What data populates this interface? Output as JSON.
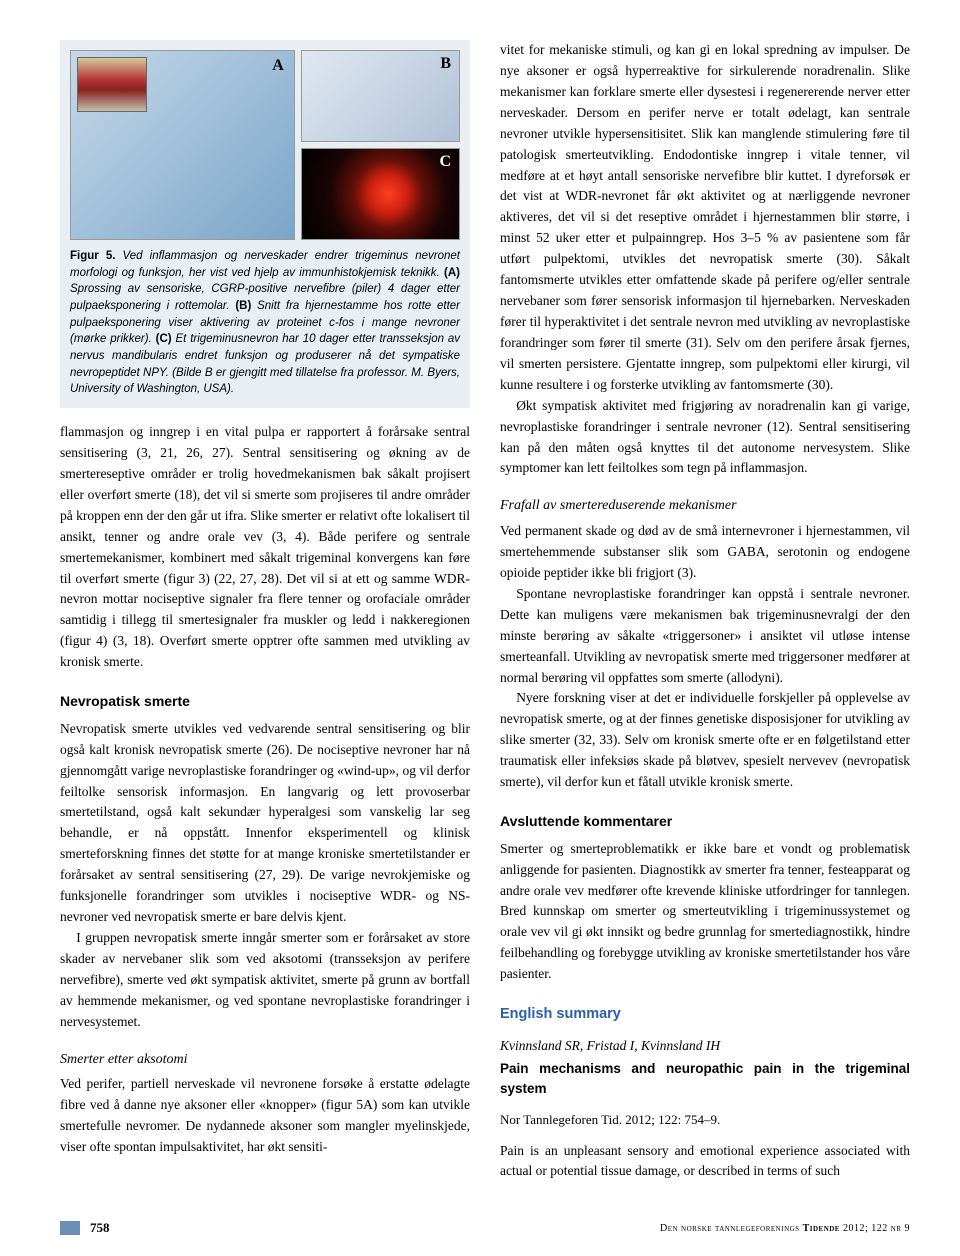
{
  "figure": {
    "label": "Figur 5.",
    "panel_a": "A",
    "panel_b": "B",
    "panel_c": "C",
    "caption_main": "Ved inflammasjon og nerveskader endrer trigeminus nevronet morfologi og funksjon, her vist ved hjelp av immunhistokjemisk teknikk.",
    "caption_a_label": "(A)",
    "caption_a": "Sprossing av sensoriske, CGRP-positive nervefibre (piler) 4 dager etter pulpaeksponering i rottemolar.",
    "caption_b_label": "(B)",
    "caption_b": "Snitt fra hjernestamme hos rotte etter pulpaeksponering viser aktivering av proteinet c-fos i mange nevroner (mørke prikker).",
    "caption_c_label": "(C)",
    "caption_c": "Et trigeminusnevron har 10 dager etter transseksjon av nervus mandibularis endret funksjon og produserer nå det sympatiske nevropeptidet NPY. (Bilde B er gjengitt med tillatelse fra professor. M. Byers, University of Washington, USA)."
  },
  "left_column": {
    "p1": "flammasjon og inngrep i en vital pulpa er rapportert å forårsake sentral sensitisering (3, 21, 26, 27). Sentral sensitisering og økning av de smertereseptive områder er trolig hovedmekanismen bak såkalt projisert eller overført smerte (18), det vil si smerte som projiseres til andre områder på kroppen enn der den går ut ifra. Slike smerter er relativt ofte lokalisert til ansikt, tenner og andre orale vev (3, 4). Både perifere og sentrale smertemekanismer, kombinert med såkalt trigeminal konvergens kan føre til overført smerte (figur 3) (22, 27, 28). Det vil si at ett og samme WDR-nevron mottar nociseptive signaler fra flere tenner og orofaciale områder samtidig i tillegg til smertesignaler fra muskler og ledd i nakkeregionen (figur 4) (3, 18). Overført smerte opptrer ofte sammen med utvikling av kronisk smerte.",
    "h1": "Nevropatisk smerte",
    "p2": "Nevropatisk smerte utvikles ved vedvarende sentral sensitisering og blir også kalt kronisk nevropatisk smerte (26). De nociseptive nevroner har nå gjennomgått varige nevroplastiske forandringer og «wind-up», og vil derfor feiltolke sensorisk informasjon. En langvarig og lett provoserbar smertetilstand, også kalt sekundær hyperalgesi som vanskelig lar seg behandle, er nå oppstått. Innenfor eksperimentell og klinisk smerteforskning finnes det støtte for at mange kroniske smertetilstander er forårsaket av sentral sensitisering (27, 29). De varige nevrokjemiske og funksjonelle forandringer som utvikles i nociseptive WDR- og NS-nevroner ved nevropatisk smerte er bare delvis kjent.",
    "p3": "I gruppen nevropatisk smerte inngår smerter som er forårsaket av store skader av nervebaner slik som ved aksotomi (transseksjon av perifere nervefibre), smerte ved økt sympatisk aktivitet, smerte på grunn av bortfall av hemmende mekanismer, og ved spontane nevroplastiske forandringer i nervesystemet.",
    "h2": "Smerter etter aksotomi",
    "p4": "Ved perifer, partiell nerveskade vil nevronene forsøke å erstatte ødelagte fibre ved å danne nye aksoner eller «knopper» (figur 5A) som kan utvikle smertefulle nevromer. De nydannede aksoner som mangler myelinskjede, viser ofte spontan impulsaktivitet, har økt sensiti-"
  },
  "right_column": {
    "p1": "vitet for mekaniske stimuli, og kan gi en lokal spredning av impulser. De nye aksoner er også hyperreaktive for sirkulerende noradrenalin. Slike mekanismer kan forklare smerte eller dysestesi i regenererende nerver etter nerveskader. Dersom en perifer nerve er totalt ødelagt, kan sentrale nevroner utvikle hypersensitisitet. Slik kan manglende stimulering føre til patologisk smerteutvikling. Endodontiske inngrep i vitale tenner, vil medføre at et høyt antall sensoriske nervefibre blir kuttet. I dyreforsøk er det vist at WDR-nevronet får økt aktivitet og at nærliggende nevroner aktiveres, det vil si det reseptive området i hjernestammen blir større, i minst 52 uker etter et pulpainngrep. Hos 3–5 % av pasientene som får utført pulpektomi, utvikles det nevropatisk smerte (30). Såkalt fantomsmerte utvikles etter omfattende skade på perifere og/eller sentrale nervebaner som fører sensorisk informasjon til hjernebarken. Nerveskaden fører til hyperaktivitet i det sentrale nevron med utvikling av nevroplastiske forandringer som fører til smerte (31). Selv om den perifere årsak fjernes, vil smerten persistere. Gjentatte inngrep, som pulpektomi eller kirurgi, vil kunne resultere i og forsterke utvikling av fantomsmerte (30).",
    "p2": "Økt sympatisk aktivitet med frigjøring av noradrenalin kan gi varige, nevroplastiske forandringer i sentrale nevroner (12). Sentral sensitisering kan på den måten også knyttes til det autonome nervesystem. Slike symptomer kan lett feiltolkes som tegn på inflammasjon.",
    "h1": "Frafall av smertereduserende mekanismer",
    "p3": "Ved permanent skade og død av de små internevroner i hjernestammen, vil smertehemmende substanser slik som GABA, serotonin og endogene opioide peptider ikke bli frigjort (3).",
    "p4": "Spontane nevroplastiske forandringer kan oppstå i sentrale nevroner. Dette kan muligens være mekanismen bak trigeminusnevralgi der den minste berøring av såkalte «triggersoner» i ansiktet vil utløse intense smerteanfall. Utvikling av nevropatisk smerte med triggersoner medfører at normal berøring vil oppfattes som smerte (allodyni).",
    "p5": "Nyere forskning viser at det er individuelle forskjeller på opplevelse av nevropatisk smerte, og at der finnes genetiske disposisjoner for utvikling av slike smerter (32, 33). Selv om kronisk smerte ofte er en følgetilstand etter traumatisk eller infeksiøs skade på bløtvev, spesielt nervevev (nevropatisk smerte), vil derfor kun et fåtall utvikle kronisk smerte.",
    "h2": "Avsluttende kommentarer",
    "p6": "Smerter og smerteproblematikk er ikke bare et vondt og problematisk anliggende for pasienten. Diagnostikk av smerter fra tenner, festeapparat og andre orale vev medfører ofte krevende kliniske utfordringer for tannlegen. Bred kunnskap om smerter og smerteutvikling i trigeminussystemet og orale vev vil gi økt innsikt og bedre grunnlag for smertediagnostikk, hindre feilbehandling og forebygge utvikling av kroniske smertetilstander hos våre pasienter.",
    "eng_heading": "English summary",
    "authors": "Kvinnsland SR, Fristad I, Kvinnsland IH",
    "eng_title": "Pain mechanisms and neuropathic pain in the trigeminal system",
    "citation": "Nor Tannlegeforen Tid. 2012; 122: 754–9.",
    "eng_p1": "Pain is an unpleasant sensory and emotional experience associated with actual or potential tissue damage, or described in terms of such"
  },
  "footer": {
    "page": "758",
    "journal_pre": "D",
    "journal_mid": "en norske tannlegeforenings",
    "journal_title": "Tidende",
    "year_vol": "2012; 122",
    "issue_pre": "nr",
    "issue": "9"
  },
  "colors": {
    "accent_blue": "#2b5fa8",
    "figure_bg": "#e8eef2",
    "footer_accent": "#6b8fb5"
  }
}
